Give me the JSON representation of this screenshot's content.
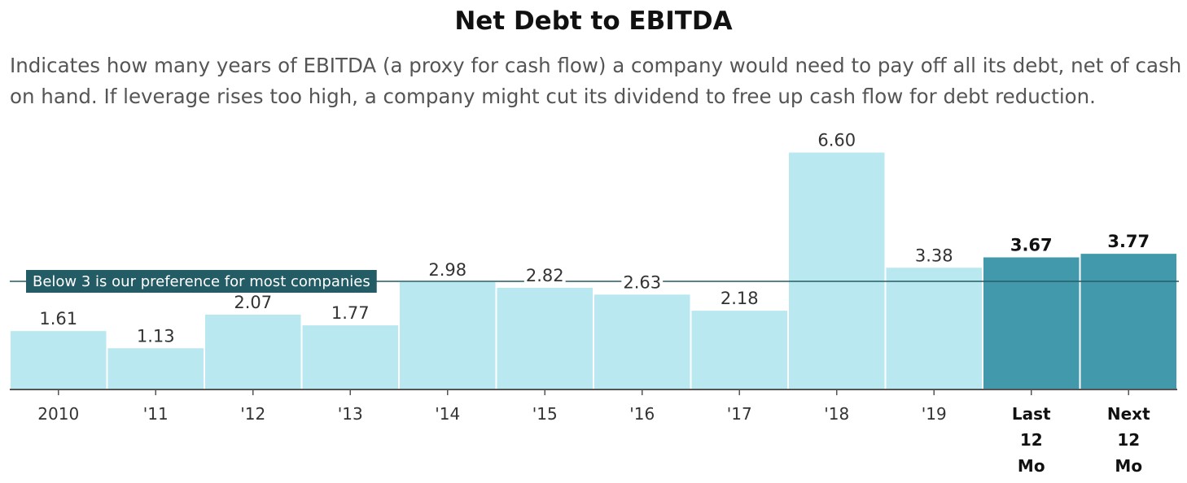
{
  "chart_data": {
    "type": "bar",
    "title": "Net Debt to EBITDA",
    "subtitle": "Indicates how many years of EBITDA (a proxy for cash flow) a company would need to pay off all its debt, net of cash on hand. If leverage rises too high, a company might cut its dividend to free up cash flow for debt reduction.",
    "categories": [
      "2010",
      "'11",
      "'12",
      "'13",
      "'14",
      "'15",
      "'16",
      "'17",
      "'18",
      "'19",
      "Last 12 Mo",
      "Next 12 Mo"
    ],
    "category_lines": [
      [
        "2010"
      ],
      [
        "'11"
      ],
      [
        "'12"
      ],
      [
        "'13"
      ],
      [
        "'14"
      ],
      [
        "'15"
      ],
      [
        "'16"
      ],
      [
        "'17"
      ],
      [
        "'18"
      ],
      [
        "'19"
      ],
      [
        "Last",
        "12",
        "Mo"
      ],
      [
        "Next",
        "12",
        "Mo"
      ]
    ],
    "values": [
      1.61,
      1.13,
      2.07,
      1.77,
      2.98,
      2.82,
      2.63,
      2.18,
      6.6,
      3.38,
      3.67,
      3.77
    ],
    "value_labels": [
      "1.61",
      "1.13",
      "2.07",
      "1.77",
      "2.98",
      "2.82",
      "2.63",
      "2.18",
      "6.60",
      "3.38",
      "3.67",
      "3.77"
    ],
    "highlight": [
      false,
      false,
      false,
      false,
      false,
      false,
      false,
      false,
      false,
      false,
      true,
      true
    ],
    "ylim": [
      0,
      7
    ],
    "grid": false,
    "xlabel": "",
    "ylabel": "",
    "reference_line": {
      "value": 3,
      "label": "Below 3 is our preference for most companies"
    },
    "colors": {
      "bar": "#bae8f0",
      "bar_highlight": "#4299ab",
      "reference_line": "#245c66",
      "reference_label_bg": "#245c66",
      "axis": "#555555"
    }
  }
}
